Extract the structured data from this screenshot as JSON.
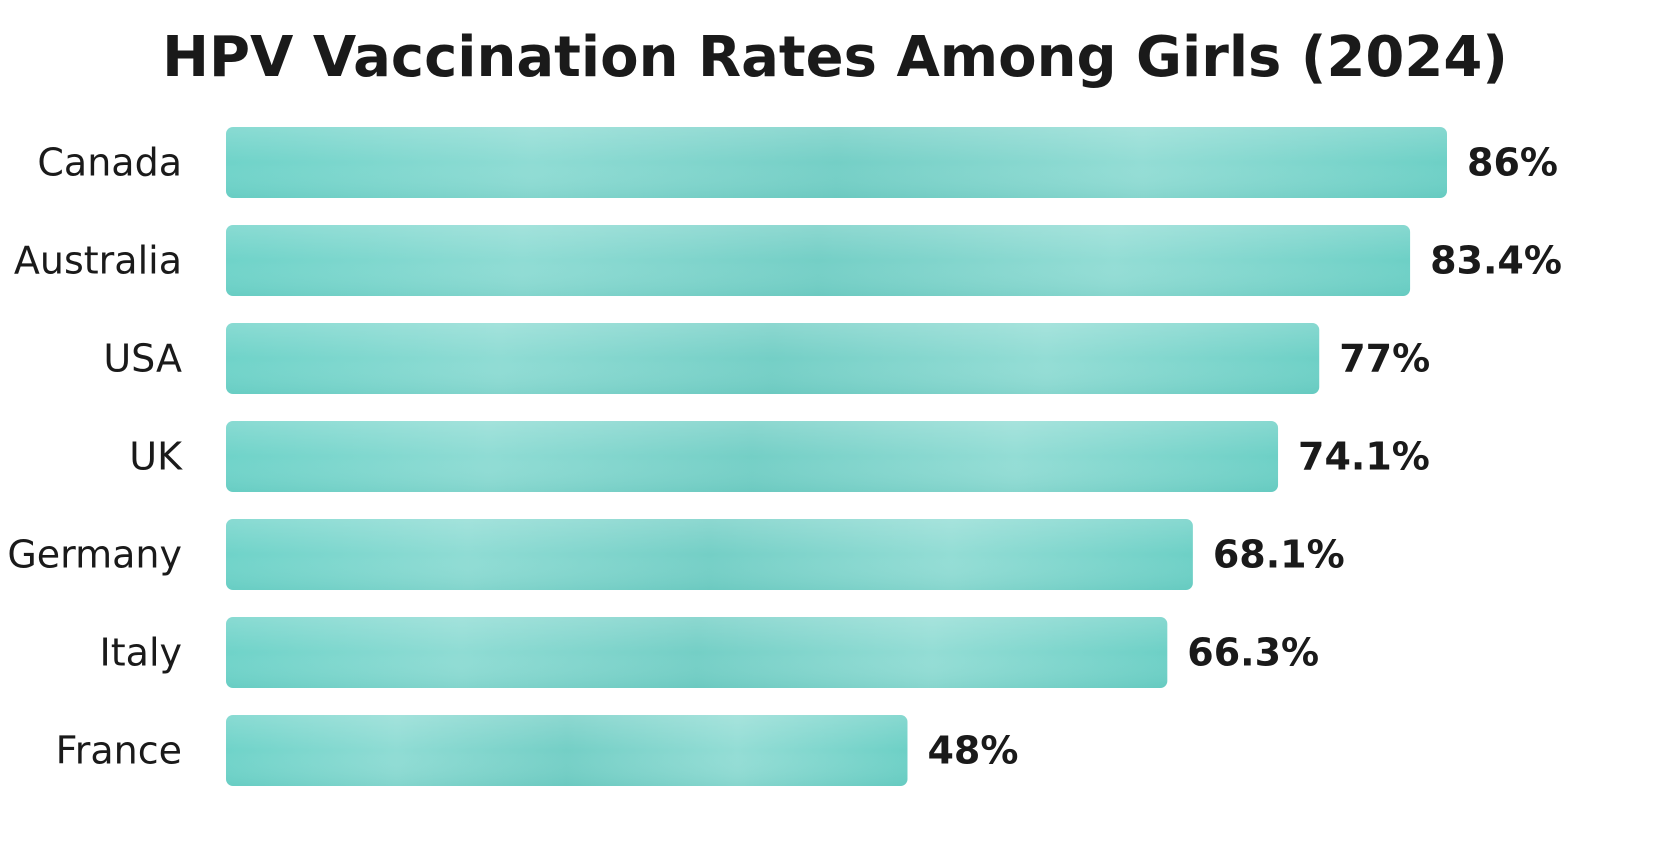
{
  "chart_data": {
    "type": "bar",
    "orientation": "horizontal",
    "title": "HPV Vaccination Rates Among Girls (2024)",
    "categories": [
      "Canada",
      "Australia",
      "USA",
      "UK",
      "Germany",
      "Italy",
      "France"
    ],
    "values": [
      86,
      83.4,
      77,
      74.1,
      68.1,
      66.3,
      48
    ],
    "value_labels": [
      "86%",
      "83.4%",
      "77%",
      "74.1%",
      "68.1%",
      "66.3%",
      "48%"
    ],
    "unit": "%",
    "xlim": [
      0,
      86
    ],
    "grid": false,
    "legend": "none",
    "colors": {
      "bar": "#7fd8cf",
      "bar_dark": "#55c4ba",
      "bar_light": "#a6e6df",
      "text": "#1a1a1a"
    }
  }
}
